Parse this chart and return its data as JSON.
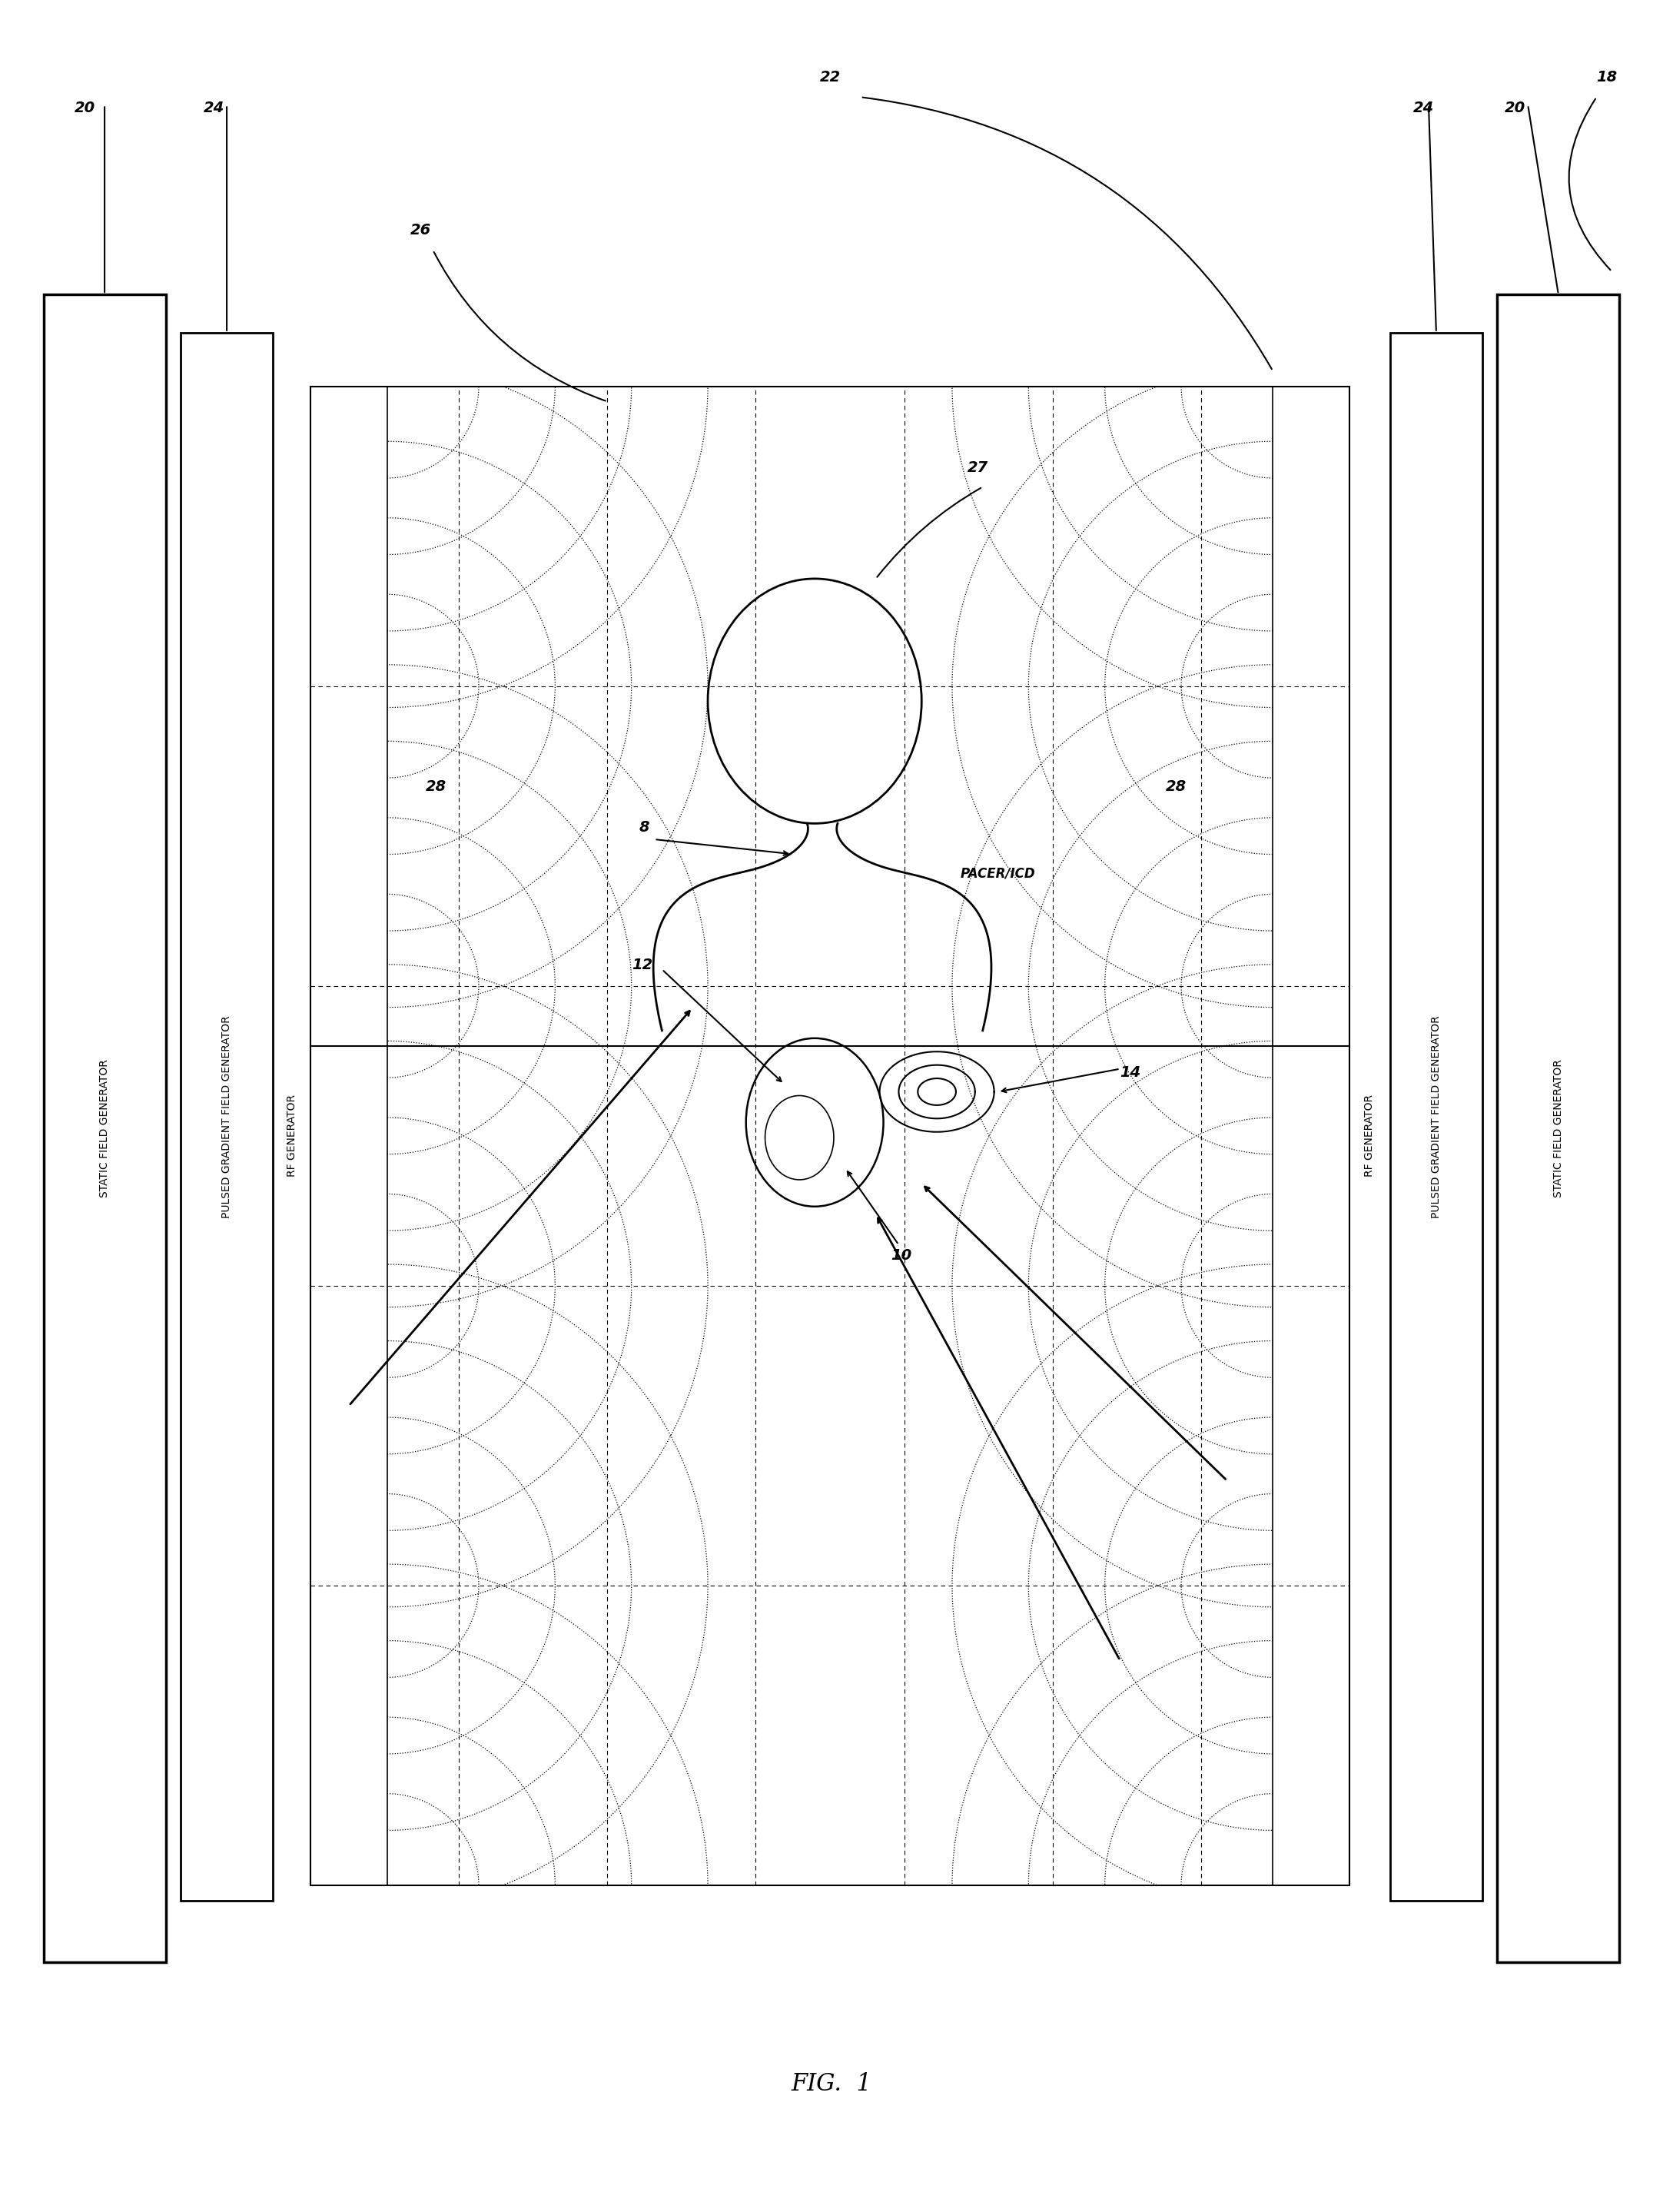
{
  "fig_width": 21.64,
  "fig_height": 28.78,
  "bg_color": "#ffffff",
  "lc": "#000000",
  "title": "FIG.  1",
  "static_label": "STATIC FIELD GENERATOR",
  "pulsed_label": "PULSED GRADIENT FIELD GENERATOR",
  "rf_label": "RF GENERATOR",
  "pacer_label": "PACER/ICD",
  "ref_fontsize": 14,
  "label_fontsize": 10
}
